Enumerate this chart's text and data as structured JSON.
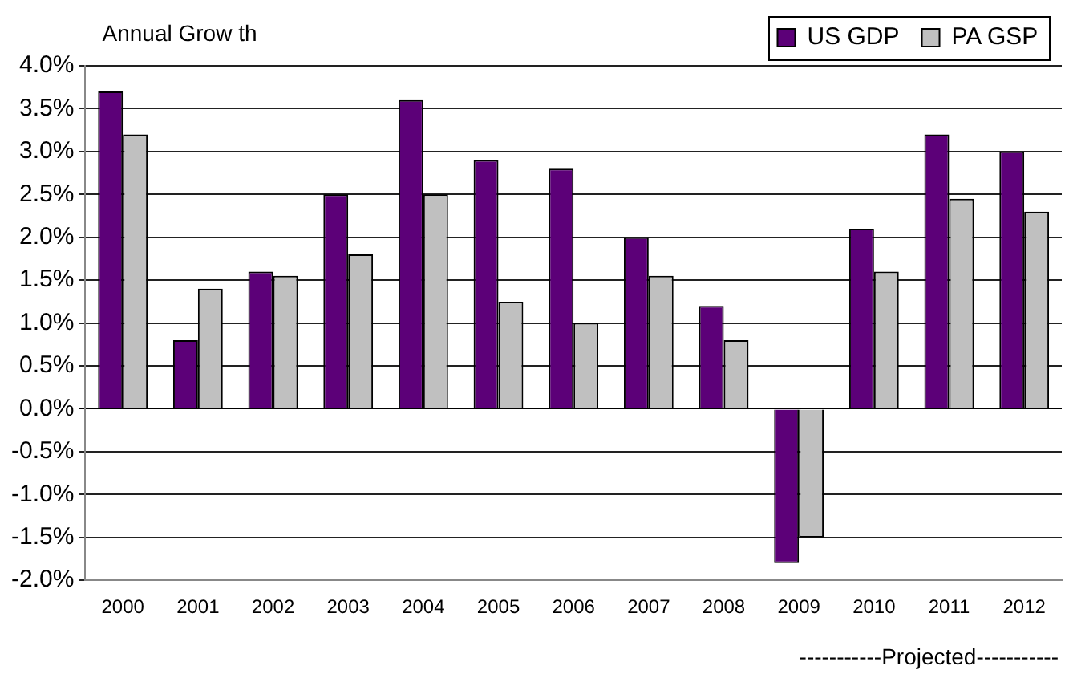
{
  "chart_data": {
    "type": "bar",
    "title": "Annual Grow th",
    "categories": [
      "2000",
      "2001",
      "2002",
      "2003",
      "2004",
      "2005",
      "2006",
      "2007",
      "2008",
      "2009",
      "2010",
      "2011",
      "2012"
    ],
    "series": [
      {
        "name": "US GDP",
        "color": "#5c0078",
        "values": [
          3.7,
          0.8,
          1.6,
          2.5,
          3.6,
          2.9,
          2.8,
          2.0,
          1.2,
          -1.8,
          2.1,
          3.2,
          3.0
        ]
      },
      {
        "name": "PA GSP",
        "color": "#c0c0c0",
        "values": [
          3.2,
          1.4,
          1.55,
          1.8,
          2.5,
          1.25,
          1.0,
          1.55,
          0.8,
          -1.5,
          1.6,
          2.45,
          2.3
        ]
      }
    ],
    "ylim": [
      -2,
      4
    ],
    "yticks": [
      {
        "value": -2,
        "label": "-2.0%"
      },
      {
        "value": -1.5,
        "label": "-1.5%"
      },
      {
        "value": -1,
        "label": "-1.0%"
      },
      {
        "value": -0.5,
        "label": "-0.5%"
      },
      {
        "value": 0,
        "label": "0.0%"
      },
      {
        "value": 0.5,
        "label": "0.5%"
      },
      {
        "value": 1,
        "label": "1.0%"
      },
      {
        "value": 1.5,
        "label": "1.5%"
      },
      {
        "value": 2,
        "label": "2.0%"
      },
      {
        "value": 2.5,
        "label": "2.5%"
      },
      {
        "value": 3,
        "label": "3.0%"
      },
      {
        "value": 3.5,
        "label": "3.5%"
      },
      {
        "value": 4,
        "label": "4.0%"
      }
    ],
    "grid": "y",
    "legend": "top right",
    "annotations": [
      "-----------Projected-----------"
    ]
  }
}
